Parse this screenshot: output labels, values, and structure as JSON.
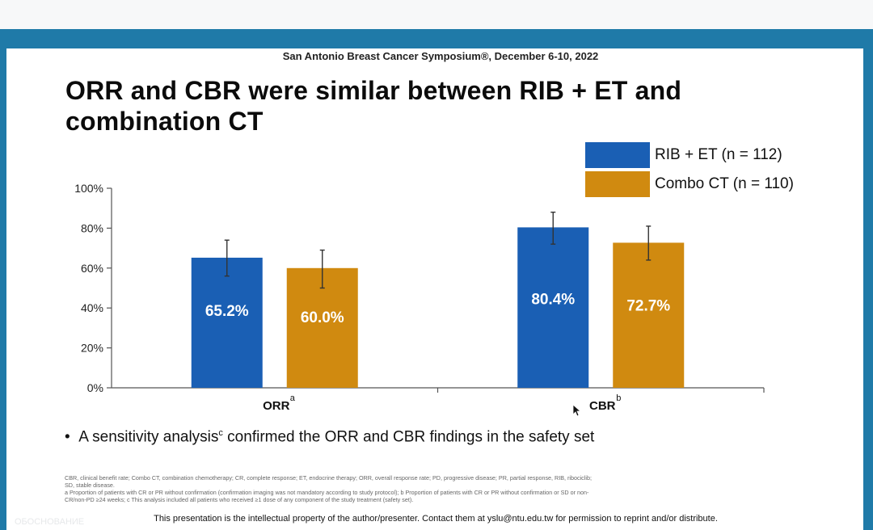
{
  "conference": "San Antonio Breast Cancer Symposium®, December 6-10, 2022",
  "slide_title_line1": "ORR and CBR were similar between RIB + ET and",
  "slide_title_line2": "combination CT",
  "colors": {
    "rib_et": "#1a5fb4",
    "combo_ct": "#d08a10",
    "frame": "#1f7aa8"
  },
  "legend": [
    {
      "label": "RIB + ET (n = 112)"
    },
    {
      "label": "Combo CT (n = 110)"
    }
  ],
  "chart_data": {
    "type": "bar",
    "categories": [
      "ORR",
      "CBR"
    ],
    "category_superscripts": [
      "a",
      "b"
    ],
    "series": [
      {
        "name": "RIB + ET (n = 112)",
        "values": [
          65.2,
          80.4
        ],
        "error": [
          [
            56,
            74
          ],
          [
            72,
            88
          ]
        ],
        "labels": [
          "65.2%",
          "80.4%"
        ]
      },
      {
        "name": "Combo CT (n = 110)",
        "values": [
          60.0,
          72.7
        ],
        "error": [
          [
            50,
            69
          ],
          [
            64,
            81
          ]
        ],
        "labels": [
          "60.0%",
          "72.7%"
        ]
      }
    ],
    "y_ticks": [
      "0%",
      "20%",
      "40%",
      "60%",
      "80%",
      "100%"
    ],
    "ylim": [
      0,
      100
    ],
    "xlabel": "",
    "ylabel": ""
  },
  "bullet": {
    "prefix": "A sensitivity analysis",
    "sup": "c",
    "suffix": " confirmed the ORR and CBR findings in the safety set"
  },
  "footnotes": [
    "CBR, clinical benefit rate; Combo CT, combination chemotherapy; CR, complete response; ET, endocrine therapy; ORR, overall response rate; PD, progressive disease; PR, partial response, RIB, ribociclib;",
    "SD, stable disease.",
    "a Proportion of patients with CR or PR without confirmation (confirmation imaging was not mandatory according to study protocol); b Proportion of patients with CR or PR without confirmation or SD or non-",
    "CR/non-PD ≥24 weeks; c This analysis included all patients who received ≥1 dose of any component of the study treatment (safety set)."
  ],
  "copyright": "This presentation is the intellectual property of the author/presenter. Contact them at yslu@ntu.edu.tw for permission to reprint and/or distribute.",
  "watermark": "ОБОСНОВАНИЕ"
}
